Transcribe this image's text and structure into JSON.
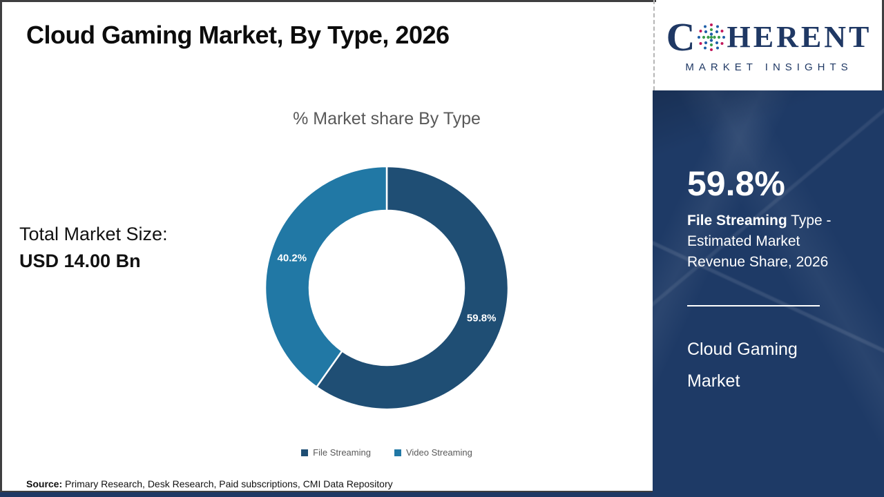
{
  "header": {
    "title": "Cloud Gaming Market, By Type, 2026"
  },
  "logo": {
    "prefix": "C",
    "suffix": "HERENT",
    "subtitle": "MARKET INSIGHTS",
    "brand_color": "#1f3864"
  },
  "left_stats": {
    "label": "Total Market Size:",
    "value": "USD 14.00 Bn"
  },
  "chart_data": {
    "type": "pie",
    "donut": true,
    "title": "% Market share By Type",
    "categories": [
      "File Streaming",
      "Video Streaming"
    ],
    "values": [
      59.8,
      40.2
    ],
    "labels": [
      "59.8%",
      "40.2%"
    ],
    "colors": [
      "#1f4e74",
      "#2178a5"
    ],
    "legend_position": "bottom"
  },
  "side_panel": {
    "headline": "59.8%",
    "description_bold": "File Streaming",
    "description_rest": " Type - Estimated Market Revenue Share, 2026",
    "footer": "Cloud Gaming Market",
    "bg_color": "#1e3a66"
  },
  "source": {
    "label": "Source:",
    "text": " Primary Research, Desk Research, Paid subscriptions, CMI Data Repository"
  }
}
